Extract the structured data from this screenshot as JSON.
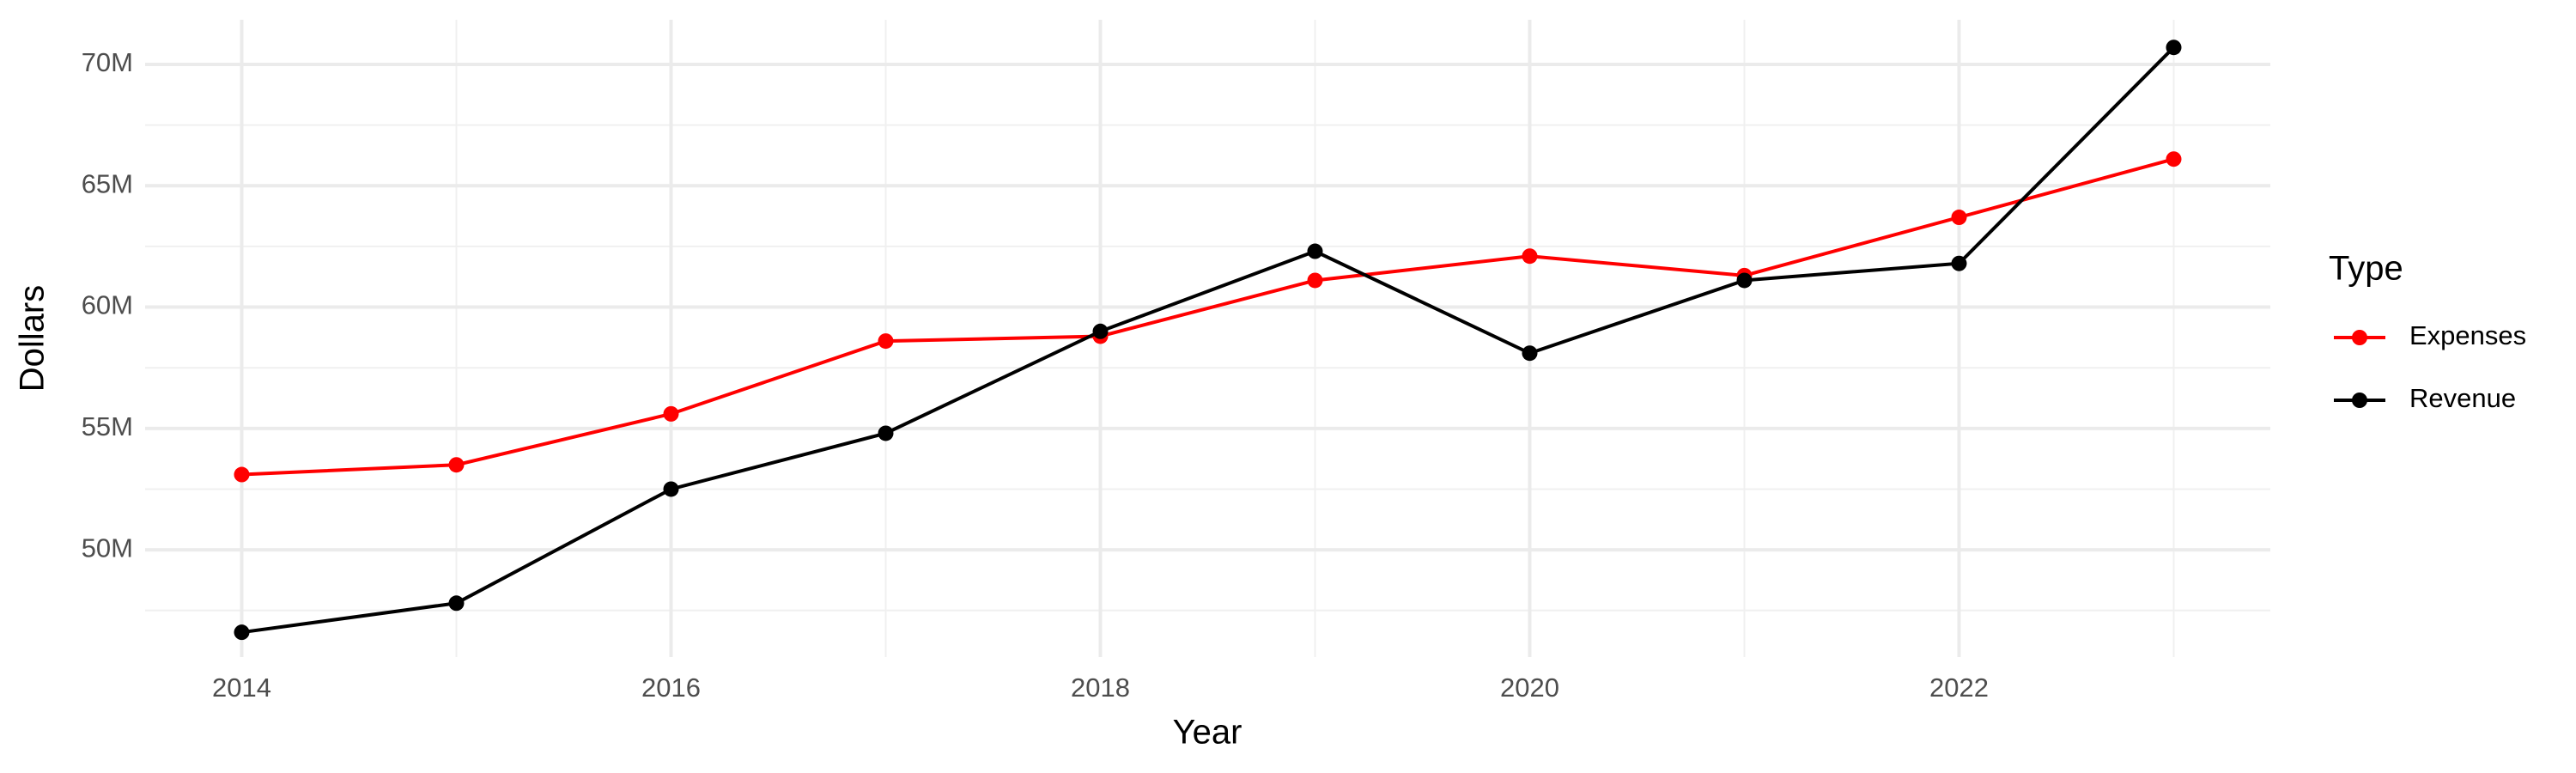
{
  "chart_data": {
    "type": "line",
    "x_label": "Year",
    "y_label": "Dollars",
    "legend_title": "Type",
    "x": [
      2014,
      2015,
      2016,
      2017,
      2018,
      2019,
      2020,
      2021,
      2022,
      2023
    ],
    "series": [
      {
        "name": "Expenses",
        "color": "#ff0000",
        "values": [
          53100000,
          53500000,
          55600000,
          58600000,
          58800000,
          61100000,
          62100000,
          61300000,
          63700000,
          66100000
        ]
      },
      {
        "name": "Revenue",
        "color": "#000000",
        "values": [
          46600000,
          47800000,
          52500000,
          54800000,
          59000000,
          62300000,
          58100000,
          61100000,
          61800000,
          70700000
        ]
      }
    ],
    "xlim": [
      2013.55,
      2023.45
    ],
    "xticks": [
      2014,
      2016,
      2018,
      2020,
      2022
    ],
    "ylim": [
      45580000,
      71840000
    ],
    "yticks": [
      {
        "value": 50000000,
        "label": "50M"
      },
      {
        "value": 55000000,
        "label": "55M"
      },
      {
        "value": 60000000,
        "label": "60M"
      },
      {
        "value": 65000000,
        "label": "65M"
      },
      {
        "value": 70000000,
        "label": "70M"
      }
    ],
    "grid": true,
    "legend_position": "right"
  }
}
